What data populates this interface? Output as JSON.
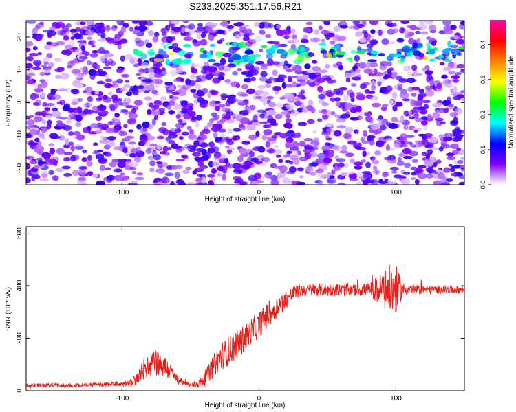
{
  "figure": {
    "title": "S233.2025.351.17.56.R21"
  },
  "chart_data": [
    {
      "type": "heatmap",
      "xlabel": "Height of straight line (km)",
      "ylabel": "Frequency (Hz)",
      "xlim": [
        -170,
        150
      ],
      "ylim": [
        -25,
        25
      ],
      "x_ticks": [
        -100,
        0,
        100
      ],
      "y_ticks": [
        -20,
        -10,
        0,
        10,
        20
      ],
      "colorbar": {
        "label": "Normalized spectral amplitude",
        "range": [
          0,
          0.47
        ],
        "ticks": [
          "0.0",
          "0.1",
          "0.2",
          "0.3",
          "0.4"
        ],
        "colormap": [
          "#ffffff",
          "#8000ff",
          "#0000ff",
          "#00ffff",
          "#00ff00",
          "#ffff00",
          "#ff8000",
          "#ff0000",
          "#ff00aa"
        ]
      },
      "features": {
        "band_frequency_hz": 15,
        "band_start_km": -90,
        "band_end_km": 150,
        "background_amplitude": 0.08
      },
      "colors": {
        "background": "#ffffff",
        "low": "#c8b4f0",
        "mid": "#8a3ad8",
        "band_high": "#00c8ff"
      }
    },
    {
      "type": "line",
      "xlabel": "Height of straight line (km)",
      "ylabel": "SNR (10 * v/v)",
      "xlim": [
        -170,
        150
      ],
      "ylim": [
        0,
        625
      ],
      "x_ticks": [
        -100,
        0,
        100
      ],
      "y_ticks": [
        0,
        200,
        400,
        600
      ],
      "series": [
        {
          "color": "#e8201a",
          "x": [
            -170,
            -160,
            -150,
            -140,
            -130,
            -120,
            -110,
            -100,
            -95,
            -90,
            -85,
            -80,
            -75,
            -70,
            -65,
            -60,
            -55,
            -50,
            -45,
            -40,
            -35,
            -30,
            -25,
            -20,
            -15,
            -10,
            -5,
            0,
            5,
            10,
            15,
            20,
            25,
            30,
            35,
            40,
            50,
            60,
            70,
            80,
            90,
            95,
            100,
            105,
            110,
            120,
            130,
            140,
            150
          ],
          "y": [
            20,
            20,
            22,
            20,
            22,
            23,
            24,
            25,
            28,
            40,
            75,
            100,
            110,
            95,
            75,
            45,
            30,
            22,
            25,
            40,
            80,
            120,
            140,
            160,
            180,
            200,
            230,
            250,
            280,
            300,
            330,
            350,
            370,
            380,
            385,
            385,
            385,
            385,
            385,
            385,
            385,
            385,
            385,
            385,
            385,
            385,
            385,
            385,
            385
          ],
          "noise": [
            8,
            8,
            8,
            8,
            8,
            8,
            8,
            10,
            14,
            20,
            40,
            50,
            50,
            45,
            35,
            20,
            10,
            10,
            15,
            25,
            40,
            50,
            55,
            55,
            55,
            55,
            50,
            50,
            50,
            45,
            40,
            35,
            30,
            25,
            25,
            25,
            25,
            25,
            25,
            25,
            70,
            95,
            95,
            25,
            20,
            15,
            15,
            15,
            15
          ]
        }
      ]
    }
  ]
}
